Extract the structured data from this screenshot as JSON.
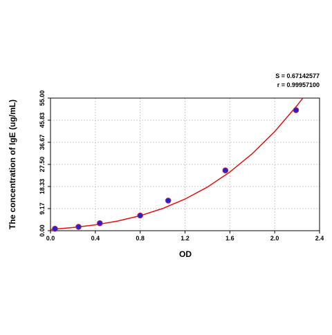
{
  "chart_data": {
    "type": "scatter",
    "annotations": [
      "S = 0.67142577",
      "r = 0.99957100"
    ],
    "xlabel": "OD",
    "ylabel": "The concentration of IgE (ug/mL)",
    "xlim": [
      0,
      2.4
    ],
    "xticks": [
      {
        "value": 0,
        "label": "0.0"
      },
      0.4,
      0.8,
      1.2,
      1.6,
      {
        "value": 2,
        "label": "2.0"
      },
      2.4
    ],
    "ylim": [
      0,
      55
    ],
    "yticks": [
      {
        "value": 0,
        "label": "0.00"
      },
      9.17,
      18.33,
      {
        "value": 27.5,
        "label": "27.50"
      },
      36.67,
      45.83,
      {
        "value": 55,
        "label": "55.00"
      }
    ],
    "grid": true,
    "points": {
      "x": [
        0.04,
        0.25,
        0.44,
        0.8,
        1.05,
        1.56,
        2.19
      ],
      "values": [
        0.8,
        1.6,
        3.1,
        6.3,
        12.5,
        25,
        50
      ],
      "color": "#2020e0",
      "edgecolor": "#d02020"
    },
    "fit": {
      "x": [
        0,
        0.2,
        0.4,
        0.6,
        0.8,
        1.0,
        1.2,
        1.4,
        1.6,
        1.8,
        2.0,
        2.2,
        2.25
      ],
      "values": [
        0.5,
        1.31,
        2.42,
        4.01,
        6.22,
        9.2,
        13.11,
        18.1,
        24.33,
        31.94,
        41.1,
        51.95,
        54.95
      ],
      "color": "#e01010"
    }
  }
}
